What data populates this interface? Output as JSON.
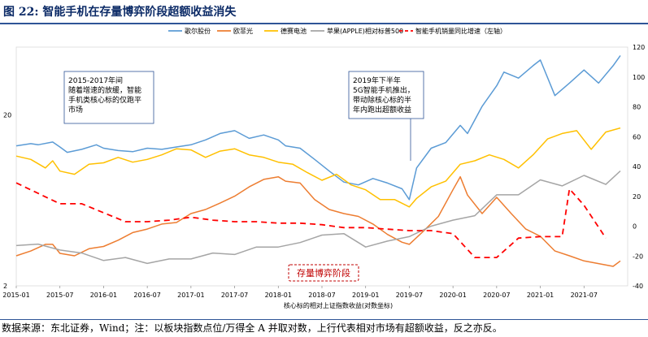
{
  "header": {
    "figure_label": "图 22:",
    "title": "智能手机在存量博弈阶段超额收益消失"
  },
  "footer": {
    "source": "数据来源：东北证券，Wind；注：以板块指数点位/万得全 A 并取对数，上行代表相对市场有超额收益，反之亦反。"
  },
  "colors": {
    "geer": "#5b9bd5",
    "oufeiguang": "#ed7d31",
    "desai": "#ffc000",
    "apple": "#a5a5a5",
    "sales": "#ff0000",
    "stamp": "#c00000",
    "rule": "#2f5597"
  },
  "chart_data": {
    "type": "line",
    "title": "智能手机在存量博弈阶段超额收益消失",
    "xlabel": "核心标的相对上证指数收益(对数坐标)",
    "x_ticks": [
      "2015-01",
      "2015-07",
      "2016-01",
      "2016-07",
      "2017-01",
      "2017-07",
      "2018-01",
      "2018-07",
      "2019-01",
      "2019-07",
      "2020-01",
      "2020-07",
      "2021-01",
      "2021-07"
    ],
    "left_axis": {
      "scale": "log",
      "ticks": [
        "20",
        "2"
      ]
    },
    "right_axis": {
      "ticks": [
        "120",
        "100",
        "80",
        "60",
        "40",
        "20",
        "0",
        "-20",
        "-40"
      ],
      "ylim": [
        -40,
        120
      ]
    },
    "legend_position": "top",
    "series": [
      {
        "name": "歌尔股份",
        "key": "geer",
        "axis": "left",
        "style": "solid",
        "points": [
          [
            "2015-01",
            13.2
          ],
          [
            "2015-03",
            13.6
          ],
          [
            "2015-04",
            13.4
          ],
          [
            "2015-06",
            13.9
          ],
          [
            "2015-07",
            13.0
          ],
          [
            "2015-08",
            12.1
          ],
          [
            "2015-10",
            12.6
          ],
          [
            "2015-12",
            13.4
          ],
          [
            "2016-01",
            12.8
          ],
          [
            "2016-03",
            12.4
          ],
          [
            "2016-05",
            12.2
          ],
          [
            "2016-07",
            12.8
          ],
          [
            "2016-09",
            12.6
          ],
          [
            "2016-11",
            13.0
          ],
          [
            "2017-01",
            13.4
          ],
          [
            "2017-03",
            14.3
          ],
          [
            "2017-05",
            15.6
          ],
          [
            "2017-07",
            16.2
          ],
          [
            "2017-09",
            14.6
          ],
          [
            "2017-11",
            15.3
          ],
          [
            "2018-01",
            14.3
          ],
          [
            "2018-02",
            13.2
          ],
          [
            "2018-04",
            12.8
          ],
          [
            "2018-06",
            11.0
          ],
          [
            "2018-08",
            9.4
          ],
          [
            "2018-10",
            8.1
          ],
          [
            "2018-12",
            7.8
          ],
          [
            "2019-02",
            8.5
          ],
          [
            "2019-04",
            8.0
          ],
          [
            "2019-06",
            7.4
          ],
          [
            "2019-07",
            6.4
          ],
          [
            "2019-08",
            9.8
          ],
          [
            "2019-10",
            12.8
          ],
          [
            "2019-12",
            13.8
          ],
          [
            "2020-02",
            17.4
          ],
          [
            "2020-03",
            15.6
          ],
          [
            "2020-05",
            22.5
          ],
          [
            "2020-07",
            29.7
          ],
          [
            "2020-08",
            35.7
          ],
          [
            "2020-10",
            32.9
          ],
          [
            "2020-12",
            38.9
          ],
          [
            "2021-01",
            42.0
          ],
          [
            "2021-03",
            26.0
          ],
          [
            "2021-05",
            30.8
          ],
          [
            "2021-07",
            36.7
          ],
          [
            "2021-09",
            30.8
          ],
          [
            "2021-11",
            38.9
          ],
          [
            "2021-12",
            44.6
          ]
        ]
      },
      {
        "name": "欧菲光",
        "key": "oufeiguang",
        "axis": "left",
        "style": "solid",
        "points": [
          [
            "2015-01",
            3.0
          ],
          [
            "2015-03",
            3.2
          ],
          [
            "2015-05",
            3.5
          ],
          [
            "2015-06",
            3.5
          ],
          [
            "2015-07",
            3.1
          ],
          [
            "2015-09",
            3.0
          ],
          [
            "2015-11",
            3.3
          ],
          [
            "2016-01",
            3.4
          ],
          [
            "2016-03",
            3.7
          ],
          [
            "2016-05",
            4.1
          ],
          [
            "2016-07",
            4.3
          ],
          [
            "2016-09",
            4.6
          ],
          [
            "2016-11",
            4.7
          ],
          [
            "2017-01",
            5.3
          ],
          [
            "2017-03",
            5.6
          ],
          [
            "2017-05",
            6.1
          ],
          [
            "2017-07",
            6.7
          ],
          [
            "2017-09",
            7.6
          ],
          [
            "2017-11",
            8.4
          ],
          [
            "2018-01",
            8.7
          ],
          [
            "2018-02",
            8.2
          ],
          [
            "2018-04",
            8.0
          ],
          [
            "2018-06",
            6.4
          ],
          [
            "2018-08",
            5.6
          ],
          [
            "2018-10",
            5.3
          ],
          [
            "2018-12",
            5.1
          ],
          [
            "2019-02",
            4.6
          ],
          [
            "2019-04",
            4.0
          ],
          [
            "2019-06",
            3.6
          ],
          [
            "2019-07",
            3.5
          ],
          [
            "2019-09",
            4.2
          ],
          [
            "2019-11",
            5.1
          ],
          [
            "2020-01",
            7.3
          ],
          [
            "2020-02",
            8.7
          ],
          [
            "2020-03",
            6.8
          ],
          [
            "2020-05",
            5.3
          ],
          [
            "2020-07",
            6.6
          ],
          [
            "2020-09",
            5.3
          ],
          [
            "2020-11",
            4.3
          ],
          [
            "2021-01",
            3.9
          ],
          [
            "2021-03",
            3.2
          ],
          [
            "2021-05",
            3.0
          ],
          [
            "2021-07",
            2.8
          ],
          [
            "2021-09",
            2.7
          ],
          [
            "2021-11",
            2.6
          ],
          [
            "2021-12",
            2.8
          ]
        ]
      },
      {
        "name": "德赛电池",
        "key": "desai",
        "axis": "left",
        "style": "solid",
        "points": [
          [
            "2015-01",
            11.5
          ],
          [
            "2015-03",
            11.0
          ],
          [
            "2015-05",
            9.8
          ],
          [
            "2015-06",
            10.8
          ],
          [
            "2015-07",
            9.4
          ],
          [
            "2015-09",
            9.0
          ],
          [
            "2015-11",
            10.3
          ],
          [
            "2016-01",
            10.5
          ],
          [
            "2016-03",
            11.3
          ],
          [
            "2016-05",
            10.6
          ],
          [
            "2016-07",
            11.0
          ],
          [
            "2016-09",
            11.7
          ],
          [
            "2016-11",
            12.7
          ],
          [
            "2017-01",
            12.5
          ],
          [
            "2017-03",
            11.3
          ],
          [
            "2017-05",
            12.3
          ],
          [
            "2017-07",
            12.7
          ],
          [
            "2017-09",
            11.7
          ],
          [
            "2017-11",
            11.3
          ],
          [
            "2018-01",
            10.6
          ],
          [
            "2018-03",
            10.3
          ],
          [
            "2018-05",
            9.2
          ],
          [
            "2018-07",
            8.3
          ],
          [
            "2018-09",
            9.0
          ],
          [
            "2018-11",
            7.8
          ],
          [
            "2019-01",
            7.3
          ],
          [
            "2019-03",
            6.4
          ],
          [
            "2019-05",
            6.4
          ],
          [
            "2019-07",
            5.8
          ],
          [
            "2019-08",
            6.5
          ],
          [
            "2019-10",
            7.6
          ],
          [
            "2019-12",
            8.2
          ],
          [
            "2020-02",
            10.3
          ],
          [
            "2020-04",
            10.8
          ],
          [
            "2020-06",
            11.7
          ],
          [
            "2020-08",
            11.0
          ],
          [
            "2020-10",
            9.8
          ],
          [
            "2020-12",
            11.7
          ],
          [
            "2021-02",
            14.5
          ],
          [
            "2021-04",
            15.6
          ],
          [
            "2021-06",
            16.2
          ],
          [
            "2021-08",
            12.6
          ],
          [
            "2021-10",
            15.9
          ],
          [
            "2021-12",
            16.8
          ]
        ]
      },
      {
        "name": "苹果(APPLE)相对标普500",
        "key": "apple",
        "axis": "right",
        "style": "solid",
        "points": [
          [
            "2015-01",
            -13
          ],
          [
            "2015-04",
            -12
          ],
          [
            "2015-07",
            -16
          ],
          [
            "2015-10",
            -18
          ],
          [
            "2016-01",
            -23
          ],
          [
            "2016-04",
            -21
          ],
          [
            "2016-07",
            -25
          ],
          [
            "2016-10",
            -22
          ],
          [
            "2017-01",
            -22
          ],
          [
            "2017-04",
            -18
          ],
          [
            "2017-07",
            -19
          ],
          [
            "2017-10",
            -14
          ],
          [
            "2018-01",
            -14
          ],
          [
            "2018-04",
            -11
          ],
          [
            "2018-07",
            -6
          ],
          [
            "2018-10",
            -5
          ],
          [
            "2019-01",
            -14
          ],
          [
            "2019-04",
            -10
          ],
          [
            "2019-07",
            -7
          ],
          [
            "2019-10",
            0
          ],
          [
            "2020-01",
            4
          ],
          [
            "2020-04",
            7
          ],
          [
            "2020-07",
            21
          ],
          [
            "2020-10",
            21
          ],
          [
            "2021-01",
            31
          ],
          [
            "2021-04",
            27
          ],
          [
            "2021-07",
            34
          ],
          [
            "2021-10",
            28
          ],
          [
            "2021-12",
            37
          ]
        ]
      },
      {
        "name": "智能手机销量同比增速（左轴）",
        "key": "sales",
        "axis": "right",
        "style": "dashed",
        "points": [
          [
            "2015-01",
            29
          ],
          [
            "2015-04",
            22
          ],
          [
            "2015-07",
            15
          ],
          [
            "2015-10",
            15
          ],
          [
            "2016-01",
            9
          ],
          [
            "2016-04",
            3
          ],
          [
            "2016-07",
            3
          ],
          [
            "2016-10",
            4
          ],
          [
            "2017-01",
            6
          ],
          [
            "2017-04",
            4
          ],
          [
            "2017-07",
            3
          ],
          [
            "2017-10",
            3
          ],
          [
            "2018-01",
            2
          ],
          [
            "2018-04",
            2
          ],
          [
            "2018-07",
            1
          ],
          [
            "2018-10",
            -1
          ],
          [
            "2019-01",
            -1
          ],
          [
            "2019-04",
            -2
          ],
          [
            "2019-07",
            -3
          ],
          [
            "2019-10",
            -3
          ],
          [
            "2020-01",
            -5
          ],
          [
            "2020-04",
            -21
          ],
          [
            "2020-07",
            -21
          ],
          [
            "2020-10",
            -8
          ],
          [
            "2021-01",
            -7
          ],
          [
            "2021-04",
            -7
          ],
          [
            "2021-05",
            25
          ],
          [
            "2021-07",
            14
          ],
          [
            "2021-10",
            -8
          ]
        ]
      }
    ],
    "annotations": [
      {
        "lines": [
          "2015-2017年间",
          "随着增速的放缓，智能",
          "手机类核心标的仅跑平",
          "市场"
        ]
      },
      {
        "lines": [
          "2019年下半年",
          "5G智能手机推出，",
          "带动除核心标的半",
          "年内跑出超额收益"
        ]
      },
      {
        "lines": [
          "存量博弈阶段"
        ]
      }
    ]
  }
}
